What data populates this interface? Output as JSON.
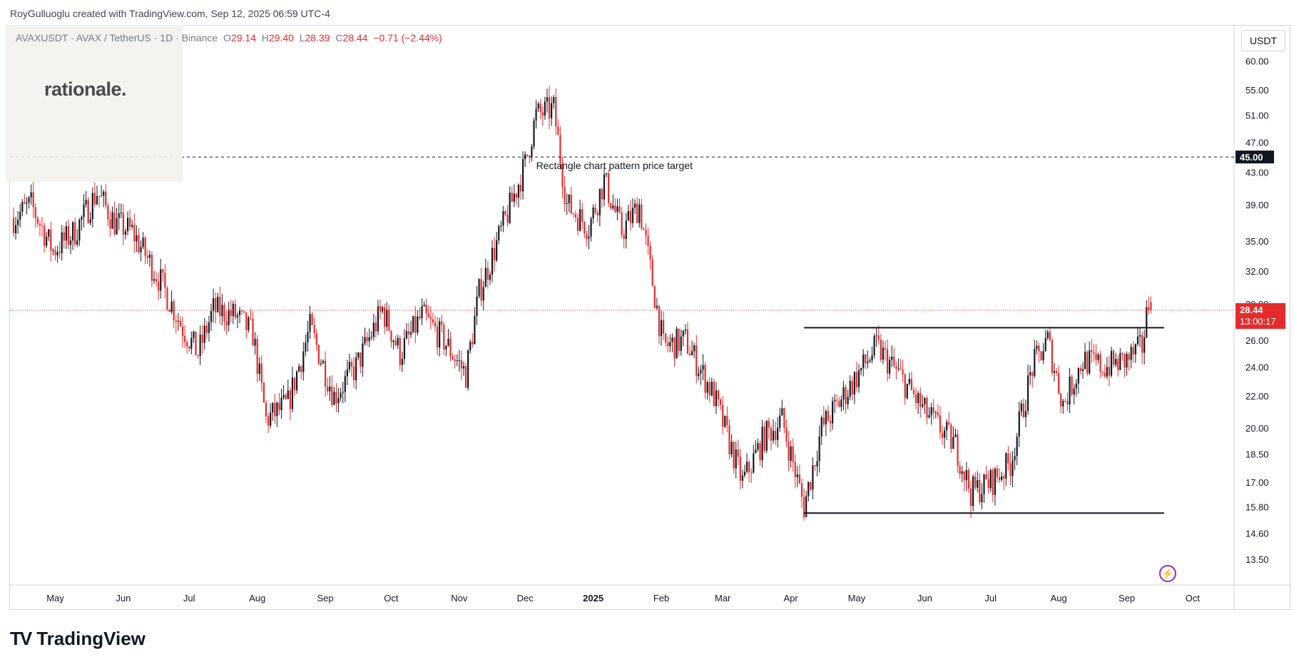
{
  "caption": "RoyGulluoglu created with TradingView.com, Sep 12, 2025 06:59 UTC-4",
  "legend": {
    "symbol": "AVAXUSDT · AVAX / TetherUS · 1D · Binance",
    "o_label": "O",
    "o": "29.14",
    "h_label": "H",
    "h": "29.40",
    "l_label": "L",
    "l": "28.39",
    "c_label": "C",
    "c": "28.44",
    "change": "−0.71 (−2.44%)"
  },
  "watermark": "rationale.",
  "unit": "USDT",
  "footer_brand": "TradingView",
  "colors": {
    "up": "#131722",
    "down": "#e52b2b",
    "price_line": "#e52b2b",
    "grid": "#f0f3fa",
    "axis_text": "#131722"
  },
  "chart_data": {
    "type": "candlestick",
    "y_scale": "log",
    "ylim": [
      12.5,
      62
    ],
    "y_ticks": [
      "60.00",
      "55.00",
      "51.00",
      "47.00",
      "43.00",
      "39.00",
      "35.00",
      "32.00",
      "29.00",
      "26.00",
      "24.00",
      "22.00",
      "20.00",
      "18.50",
      "17.00",
      "15.80",
      "14.60",
      "13.50"
    ],
    "x_labels": [
      "May",
      "Jun",
      "Jul",
      "Aug",
      "Sep",
      "Oct",
      "Nov",
      "Dec",
      "2025",
      "Feb",
      "Mar",
      "Apr",
      "May",
      "Jun",
      "Jul",
      "Aug",
      "Sep",
      "Oct"
    ],
    "x_label_dates": [
      "2024-05-01",
      "2024-06-01",
      "2024-07-01",
      "2024-08-01",
      "2024-09-01",
      "2024-10-01",
      "2024-11-01",
      "2024-12-01",
      "2025-01-01",
      "2025-02-01",
      "2025-03-01",
      "2025-04-01",
      "2025-05-01",
      "2025-06-01",
      "2025-07-01",
      "2025-08-01",
      "2025-09-01",
      "2025-10-01"
    ],
    "date_range": [
      "2024-04-12",
      "2025-09-12"
    ],
    "close_path": [
      [
        "2024-04-12",
        37.5
      ],
      [
        "2024-04-20",
        39.0
      ],
      [
        "2024-04-30",
        34.0
      ],
      [
        "2024-05-10",
        36.0
      ],
      [
        "2024-05-20",
        40.5
      ],
      [
        "2024-05-28",
        37.0
      ],
      [
        "2024-06-05",
        36.0
      ],
      [
        "2024-06-18",
        31.0
      ],
      [
        "2024-06-28",
        27.0
      ],
      [
        "2024-07-05",
        25.0
      ],
      [
        "2024-07-12",
        28.5
      ],
      [
        "2024-07-22",
        28.0
      ],
      [
        "2024-07-30",
        26.5
      ],
      [
        "2024-08-05",
        20.5
      ],
      [
        "2024-08-15",
        21.5
      ],
      [
        "2024-08-25",
        27.0
      ],
      [
        "2024-09-05",
        22.0
      ],
      [
        "2024-09-15",
        24.0
      ],
      [
        "2024-09-27",
        28.5
      ],
      [
        "2024-10-05",
        25.0
      ],
      [
        "2024-10-15",
        28.0
      ],
      [
        "2024-10-25",
        26.0
      ],
      [
        "2024-11-04",
        23.5
      ],
      [
        "2024-11-10",
        30.0
      ],
      [
        "2024-11-20",
        36.0
      ],
      [
        "2024-12-01",
        44.0
      ],
      [
        "2024-12-06",
        51.0
      ],
      [
        "2024-12-14",
        52.0
      ],
      [
        "2024-12-20",
        39.0
      ],
      [
        "2024-12-30",
        36.5
      ],
      [
        "2025-01-06",
        42.0
      ],
      [
        "2025-01-14",
        36.0
      ],
      [
        "2025-01-22",
        39.0
      ],
      [
        "2025-02-02",
        25.5
      ],
      [
        "2025-02-12",
        26.0
      ],
      [
        "2025-02-25",
        22.0
      ],
      [
        "2025-03-10",
        17.0
      ],
      [
        "2025-03-20",
        19.5
      ],
      [
        "2025-03-28",
        20.5
      ],
      [
        "2025-04-07",
        15.8
      ],
      [
        "2025-04-15",
        20.0
      ],
      [
        "2025-04-25",
        22.0
      ],
      [
        "2025-05-10",
        25.5
      ],
      [
        "2025-05-20",
        23.5
      ],
      [
        "2025-06-01",
        21.0
      ],
      [
        "2025-06-15",
        19.0
      ],
      [
        "2025-06-22",
        16.5
      ],
      [
        "2025-07-01",
        17.0
      ],
      [
        "2025-07-10",
        18.0
      ],
      [
        "2025-07-20",
        24.0
      ],
      [
        "2025-07-27",
        26.0
      ],
      [
        "2025-08-03",
        21.5
      ],
      [
        "2025-08-12",
        24.5
      ],
      [
        "2025-08-22",
        24.0
      ],
      [
        "2025-09-01",
        24.5
      ],
      [
        "2025-09-08",
        25.5
      ],
      [
        "2025-09-11",
        29.15
      ],
      [
        "2025-09-12",
        28.44
      ]
    ],
    "last_price": "28.44",
    "countdown": "13:00:17",
    "drawings": [
      {
        "type": "dashed_hline",
        "value": 45.0,
        "label": "45.00",
        "note": "Rectangle chart pattern price target"
      },
      {
        "type": "hline",
        "value": 27.0,
        "from": "2025-04-07",
        "to": "2025-09-18"
      },
      {
        "type": "hline",
        "value": 15.5,
        "from": "2025-04-07",
        "to": "2025-09-18"
      }
    ]
  }
}
